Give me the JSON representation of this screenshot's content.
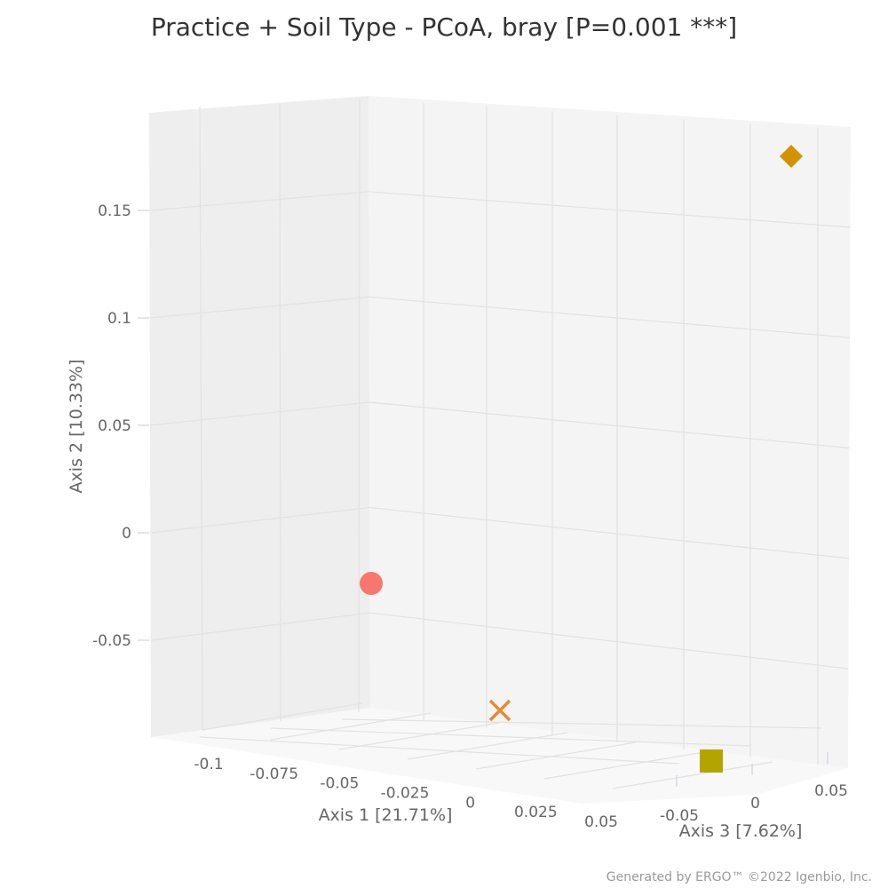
{
  "chart_data": {
    "type": "scatter",
    "title": "Practice + Soil Type - PCoA, bray [P=0.001 ***]",
    "xlabel": "Axis 1 [21.71%]",
    "ylabel": "Axis 2 [10.33%]",
    "zlabel": "Axis 3 [7.62%]",
    "projection": "3d",
    "x_ticks": [
      "-0.1",
      "-0.075",
      "-0.05",
      "-0.025",
      "0",
      "0.025",
      "0.05"
    ],
    "y_ticks": [
      "0.15",
      "0.1",
      "0.05",
      "0",
      "-0.05"
    ],
    "z_ticks": [
      "-0.05",
      "0",
      "0.05"
    ],
    "points": [
      {
        "symbol": "circle",
        "color": "#f8766d",
        "x": -0.1,
        "y": -0.02,
        "z": 0.05
      },
      {
        "symbol": "x",
        "color": "#e58b2f",
        "x": 0.02,
        "y": -0.09,
        "z": 0.03
      },
      {
        "symbol": "square",
        "color": "#b5a300",
        "x": 0.06,
        "y": -0.09,
        "z": -0.04
      },
      {
        "symbol": "diamond",
        "color": "#d39200",
        "x": 0.01,
        "y": 0.18,
        "z": -0.06
      }
    ],
    "legend": "none"
  },
  "footer": "Generated by ERGO™ ©2022 Igenbio, Inc."
}
